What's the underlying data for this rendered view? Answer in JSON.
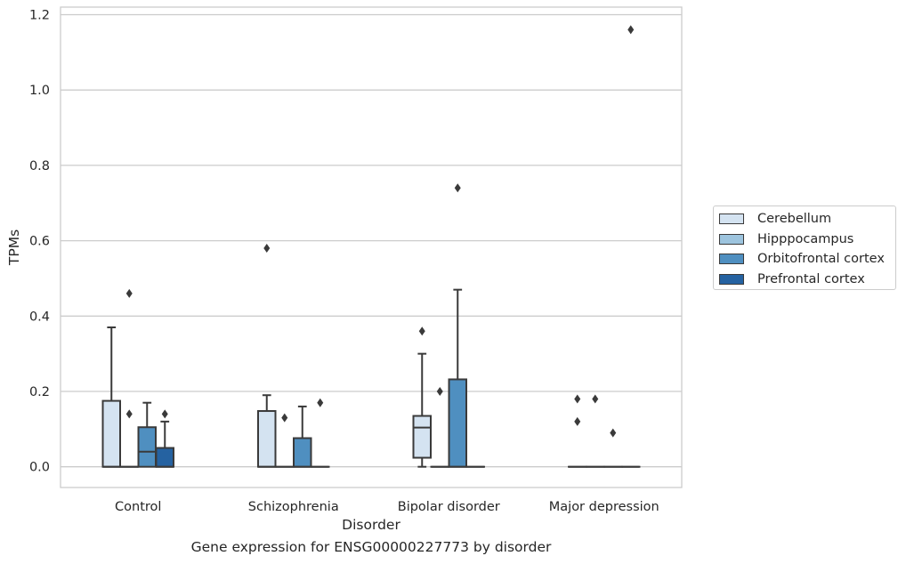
{
  "chart_data": {
    "type": "box",
    "xlabel": "Disorder",
    "ylabel": "TPMs",
    "caption": "Gene expression for ENSG00000227773 by disorder",
    "ylim": [
      -0.055,
      1.22
    ],
    "yticks": [
      0.0,
      0.2,
      0.4,
      0.6,
      0.8,
      1.0,
      1.2
    ],
    "ytick_labels": [
      "0.0",
      "0.2",
      "0.4",
      "0.6",
      "0.8",
      "1.0",
      "1.2"
    ],
    "grid": true,
    "legend_position": "right",
    "categories": [
      "Control",
      "Schizophrenia",
      "Bipolar disorder",
      "Major depression"
    ],
    "series": [
      {
        "name": "Cerebellum",
        "color": "#d4e3f1"
      },
      {
        "name": "Hipppocampus",
        "color": "#9dc4de"
      },
      {
        "name": "Orbitofrontal cortex",
        "color": "#4f8fc0"
      },
      {
        "name": "Prefrontal cortex",
        "color": "#2562a1"
      }
    ],
    "boxes": [
      {
        "category": "Control",
        "series": "Cerebellum",
        "whislo": 0.0,
        "q1": 0.0,
        "median": 0.0,
        "q3": 0.175,
        "whishi": 0.37,
        "fliers": []
      },
      {
        "category": "Control",
        "series": "Hipppocampus",
        "whislo": 0.0,
        "q1": 0.0,
        "median": 0.0,
        "q3": 0.0,
        "whishi": 0.0,
        "fliers": [
          0.14,
          0.46
        ]
      },
      {
        "category": "Control",
        "series": "Orbitofrontal cortex",
        "whislo": 0.0,
        "q1": 0.0,
        "median": 0.04,
        "q3": 0.105,
        "whishi": 0.17,
        "fliers": []
      },
      {
        "category": "Control",
        "series": "Prefrontal cortex",
        "whislo": 0.0,
        "q1": 0.0,
        "median": 0.0,
        "q3": 0.05,
        "whishi": 0.12,
        "fliers": [
          0.14
        ]
      },
      {
        "category": "Schizophrenia",
        "series": "Cerebellum",
        "whislo": 0.0,
        "q1": 0.0,
        "median": 0.0,
        "q3": 0.148,
        "whishi": 0.19,
        "fliers": [
          0.58
        ]
      },
      {
        "category": "Schizophrenia",
        "series": "Hipppocampus",
        "whislo": 0.0,
        "q1": 0.0,
        "median": 0.0,
        "q3": 0.0,
        "whishi": 0.0,
        "fliers": [
          0.13
        ]
      },
      {
        "category": "Schizophrenia",
        "series": "Orbitofrontal cortex",
        "whislo": 0.0,
        "q1": 0.0,
        "median": 0.0,
        "q3": 0.076,
        "whishi": 0.16,
        "fliers": []
      },
      {
        "category": "Schizophrenia",
        "series": "Prefrontal cortex",
        "whislo": 0.0,
        "q1": 0.0,
        "median": 0.0,
        "q3": 0.0,
        "whishi": 0.0,
        "fliers": [
          0.17
        ]
      },
      {
        "category": "Bipolar disorder",
        "series": "Cerebellum",
        "whislo": 0.0,
        "q1": 0.024,
        "median": 0.104,
        "q3": 0.135,
        "whishi": 0.3,
        "fliers": [
          0.36
        ]
      },
      {
        "category": "Bipolar disorder",
        "series": "Hipppocampus",
        "whislo": 0.0,
        "q1": 0.0,
        "median": 0.0,
        "q3": 0.0,
        "whishi": 0.0,
        "fliers": [
          0.2
        ]
      },
      {
        "category": "Bipolar disorder",
        "series": "Orbitofrontal cortex",
        "whislo": 0.0,
        "q1": 0.0,
        "median": 0.0,
        "q3": 0.232,
        "whishi": 0.47,
        "fliers": [
          0.74
        ]
      },
      {
        "category": "Bipolar disorder",
        "series": "Prefrontal cortex",
        "whislo": 0.0,
        "q1": 0.0,
        "median": 0.0,
        "q3": 0.0,
        "whishi": 0.0,
        "fliers": []
      },
      {
        "category": "Major depression",
        "series": "Cerebellum",
        "whislo": 0.0,
        "q1": 0.0,
        "median": 0.0,
        "q3": 0.0,
        "whishi": 0.0,
        "fliers": [
          0.12,
          0.18
        ]
      },
      {
        "category": "Major depression",
        "series": "Hipppocampus",
        "whislo": 0.0,
        "q1": 0.0,
        "median": 0.0,
        "q3": 0.0,
        "whishi": 0.0,
        "fliers": [
          0.18
        ]
      },
      {
        "category": "Major depression",
        "series": "Orbitofrontal cortex",
        "whislo": 0.0,
        "q1": 0.0,
        "median": 0.0,
        "q3": 0.0,
        "whishi": 0.0,
        "fliers": [
          0.09
        ]
      },
      {
        "category": "Major depression",
        "series": "Prefrontal cortex",
        "whislo": 0.0,
        "q1": 0.0,
        "median": 0.0,
        "q3": 0.0,
        "whishi": 0.0,
        "fliers": [
          1.16
        ]
      }
    ]
  }
}
